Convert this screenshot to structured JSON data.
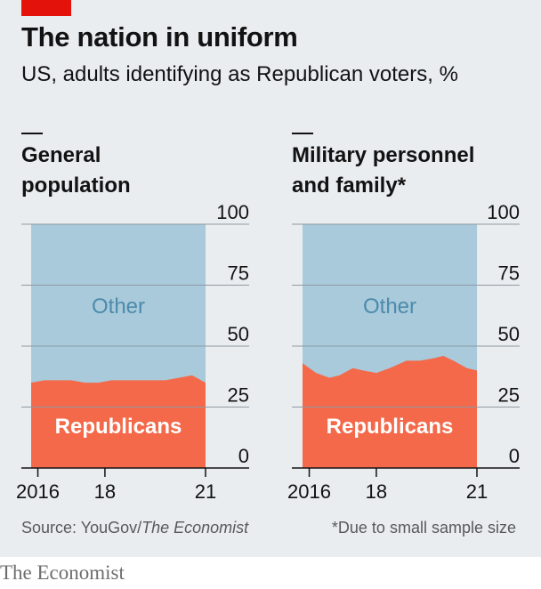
{
  "header": {
    "title": "The nation in uniform",
    "subtitle": "US, adults identifying as Republican voters, %"
  },
  "chart_data": [
    {
      "type": "area",
      "title": [
        "General",
        "population"
      ],
      "x_ticks": [
        "2016",
        "18",
        "21"
      ],
      "x_tick_years": [
        2016,
        2018,
        2021
      ],
      "y_ticks": [
        "100",
        "75",
        "50",
        "25",
        "0"
      ],
      "y_tick_values": [
        100,
        75,
        50,
        25,
        0
      ],
      "ylim": [
        0,
        100
      ],
      "xlim": [
        2015.8,
        2021.0
      ],
      "series": [
        {
          "name": "Republicans",
          "x": [
            2015.8,
            2016.2,
            2016.6,
            2017.0,
            2017.4,
            2017.8,
            2018.2,
            2018.6,
            2019.0,
            2019.4,
            2019.8,
            2020.2,
            2020.6,
            2021.0
          ],
          "values": [
            35,
            36,
            36,
            36,
            35,
            35,
            36,
            36,
            36,
            36,
            36,
            37,
            38,
            35
          ]
        },
        {
          "name": "Other",
          "note": "remainder to 100"
        }
      ],
      "labels": {
        "upper": "Other",
        "lower": "Republicans"
      }
    },
    {
      "type": "area",
      "title": [
        "Military personnel",
        "and family*"
      ],
      "x_ticks": [
        "2016",
        "18",
        "21"
      ],
      "x_tick_years": [
        2016,
        2018,
        2021
      ],
      "y_ticks": [
        "100",
        "75",
        "50",
        "25",
        "0"
      ],
      "y_tick_values": [
        100,
        75,
        50,
        25,
        0
      ],
      "ylim": [
        0,
        100
      ],
      "xlim": [
        2015.8,
        2021.0
      ],
      "series": [
        {
          "name": "Republicans",
          "x": [
            2015.8,
            2016.2,
            2016.6,
            2016.9,
            2017.3,
            2017.6,
            2018.0,
            2018.4,
            2018.9,
            2019.3,
            2019.7,
            2020.0,
            2020.3,
            2020.7,
            2021.0
          ],
          "values": [
            43,
            39,
            37,
            38,
            41,
            40,
            39,
            41,
            44,
            44,
            45,
            46,
            44,
            41,
            40
          ]
        },
        {
          "name": "Other",
          "note": "remainder to 100"
        }
      ],
      "labels": {
        "upper": "Other",
        "lower": "Republicans"
      }
    }
  ],
  "colors": {
    "republicans": "#f4694a",
    "other": "#a8cadb",
    "other_label": "#4d8aab",
    "republicans_label": "#ffffff"
  },
  "footer": {
    "source_prefix": "Source: YouGov/",
    "source_italic": "The Economist",
    "footnote": "*Due to small sample size",
    "brand": "The Economist"
  }
}
